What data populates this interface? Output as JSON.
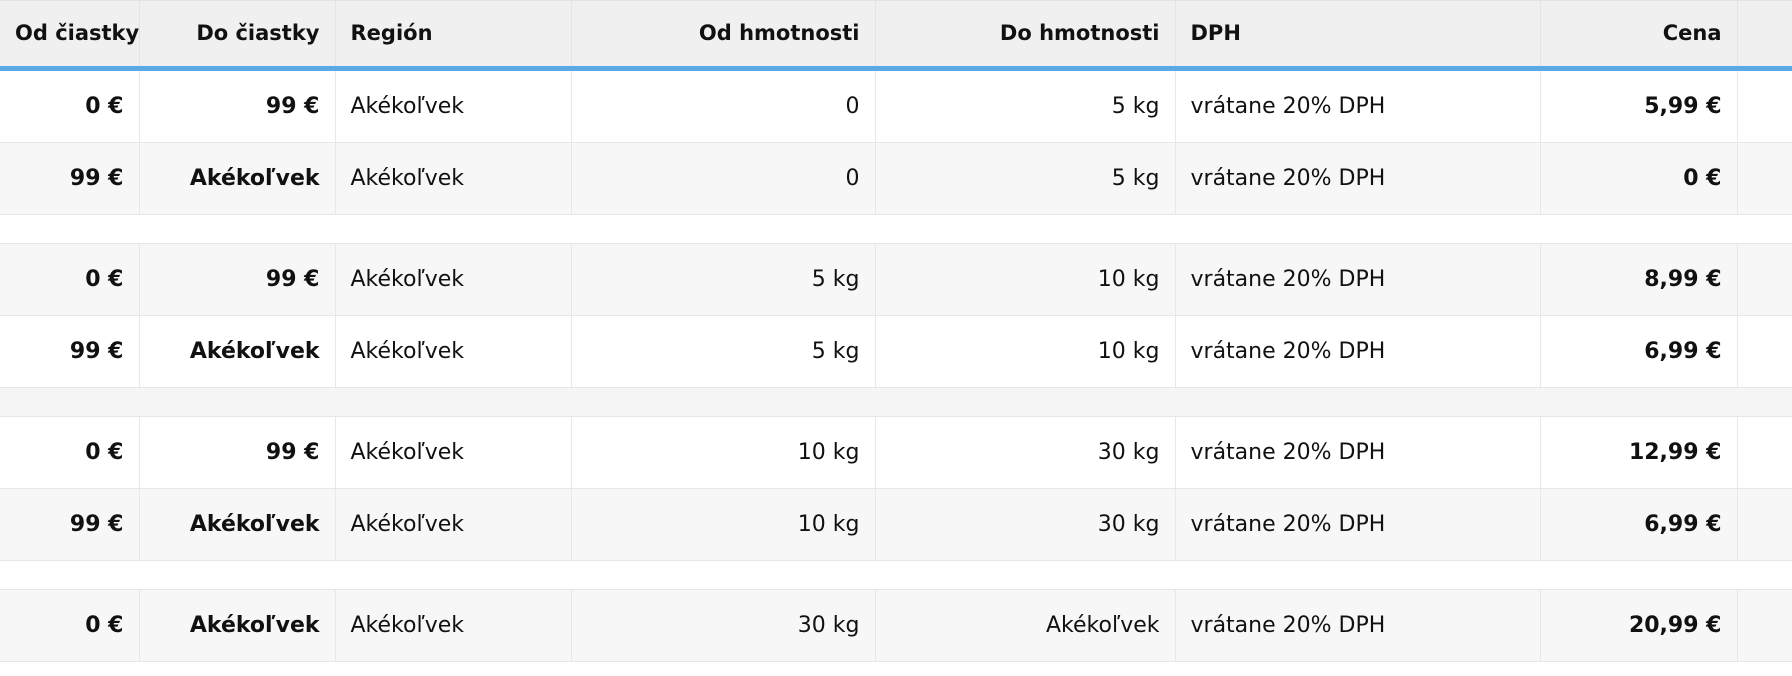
{
  "table": {
    "headers": [
      "Od čiastky",
      "Do čiastky",
      "Región",
      "Od hmotnosti",
      "Do hmotnosti",
      "DPH",
      "Cena",
      ""
    ],
    "groups": [
      {
        "rows": [
          [
            "0 €",
            "99 €",
            "Akékoľvek",
            "0",
            "5 kg",
            "vrátane 20% DPH",
            "5,99 €"
          ],
          [
            "99 €",
            "Akékoľvek",
            "Akékoľvek",
            "0",
            "5 kg",
            "vrátane 20% DPH",
            "0 €"
          ]
        ]
      },
      {
        "rows": [
          [
            "0 €",
            "99 €",
            "Akékoľvek",
            "5 kg",
            "10 kg",
            "vrátane 20% DPH",
            "8,99 €"
          ],
          [
            "99 €",
            "Akékoľvek",
            "Akékoľvek",
            "5 kg",
            "10 kg",
            "vrátane 20% DPH",
            "6,99 €"
          ]
        ]
      },
      {
        "rows": [
          [
            "0 €",
            "99 €",
            "Akékoľvek",
            "10 kg",
            "30 kg",
            "vrátane 20% DPH",
            "12,99 €"
          ],
          [
            "99 €",
            "Akékoľvek",
            "Akékoľvek",
            "10 kg",
            "30 kg",
            "vrátane 20% DPH",
            "6,99 €"
          ]
        ]
      },
      {
        "rows": [
          [
            "0 €",
            "Akékoľvek",
            "Akékoľvek",
            "30 kg",
            "Akékoľvek",
            "vrátane 20% DPH",
            "20,99 €"
          ]
        ]
      }
    ]
  },
  "colors": {
    "accent": "#5aa9e4",
    "header_bg": "#f0f0f0",
    "row_alt_bg": "#f7f7f7"
  }
}
